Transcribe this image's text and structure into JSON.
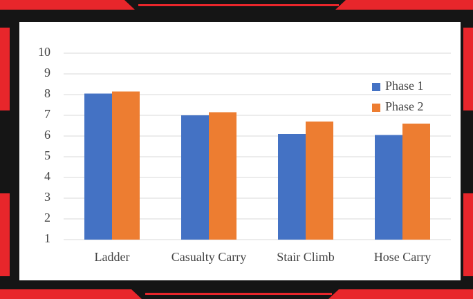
{
  "chart_data": {
    "type": "bar",
    "categories": [
      "Ladder",
      "Casualty Carry",
      "Stair Climb",
      "Hose Carry"
    ],
    "series": [
      {
        "name": "Phase 1",
        "color": "#4472c4",
        "values": [
          8.05,
          7.0,
          6.1,
          6.05
        ]
      },
      {
        "name": "Phase 2",
        "color": "#ed7d31",
        "values": [
          8.15,
          7.15,
          6.7,
          6.6
        ]
      }
    ],
    "ylim": [
      1,
      10
    ],
    "yticks": [
      1,
      2,
      3,
      4,
      5,
      6,
      7,
      8,
      9,
      10
    ],
    "grid": true,
    "legend": "right"
  }
}
